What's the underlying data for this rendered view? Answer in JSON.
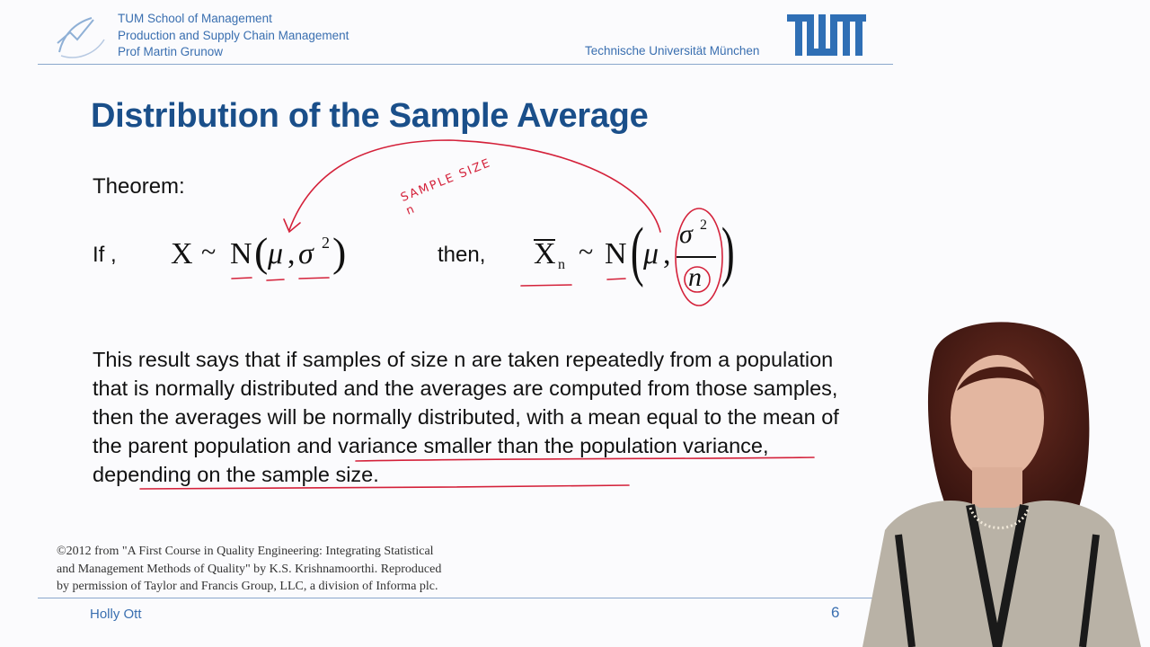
{
  "header": {
    "institution_lines": [
      "TUM School of Management",
      "Production and Supply Chain Management",
      "Prof Martin Grunow"
    ],
    "university": "Technische Universität München",
    "logo_text": "TUM"
  },
  "slide": {
    "title": "Distribution of the Sample Average",
    "theorem_label": "Theorem:",
    "if_label": "If ,",
    "then_label": "then,",
    "formula_left": {
      "variable": "X",
      "tilde": "~",
      "dist": "N",
      "open_paren": "(",
      "mu": "μ",
      "comma": ",",
      "sigma": "σ",
      "exponent": "2",
      "close_paren": ")"
    },
    "formula_right": {
      "variable": "X",
      "subscript": "n",
      "tilde": "~",
      "dist": "N",
      "open_paren": "(",
      "mu": "μ",
      "comma": ",",
      "sigma": "σ",
      "exponent": "2",
      "denominator": "n",
      "close_paren": ")"
    },
    "annotation": "SAMPLE SIZE n",
    "body_segments": {
      "part1": "This result says that if samples of size n are taken repeatedly from a population that is normally distributed and the averages are computed from those samples, then the averages will be normally distributed, with a mean ",
      "underline1": "equal to the mean of the parent population",
      "part2": " and ",
      "underline2": "variance smaller than the population variance",
      "part3": ", depending on the sample size."
    },
    "credit_lines": [
      "©2012 from \"A First Course in Quality Engineering: Integrating Statistical",
      "and Management Methods of Quality\" by K.S. Krishnamoorthi. Reproduced",
      "by permission of Taylor and Francis Group, LLC, a division of Informa plc."
    ],
    "presenter": "Holly Ott",
    "page_number": "6"
  },
  "colors": {
    "title": "#1a4f8a",
    "accent": "#3a6fb0",
    "ink": "#d4213a"
  }
}
